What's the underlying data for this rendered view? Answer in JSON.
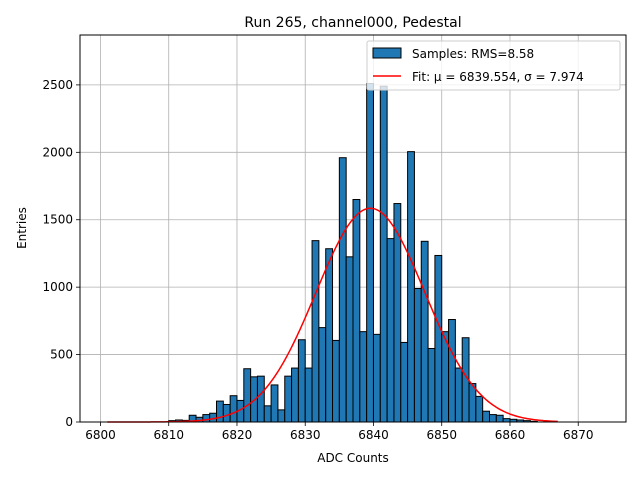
{
  "chart_data": {
    "type": "bar",
    "title": "Run 265, channel000, Pedestal",
    "xlabel": "ADC Counts",
    "ylabel": "Entries",
    "xlim": [
      6797,
      6877
    ],
    "ylim": [
      0,
      2870
    ],
    "xticks": [
      6800,
      6810,
      6820,
      6830,
      6840,
      6850,
      6860,
      6870
    ],
    "yticks": [
      0,
      500,
      1000,
      1500,
      2000,
      2500
    ],
    "grid": true,
    "legend_position": "top-right",
    "histogram": {
      "name": "Samples: RMS=8.58",
      "bin_width": 1,
      "bin_starts": [
        6810,
        6811,
        6812,
        6813,
        6814,
        6815,
        6816,
        6817,
        6818,
        6819,
        6820,
        6821,
        6822,
        6823,
        6824,
        6825,
        6826,
        6827,
        6828,
        6829,
        6830,
        6831,
        6832,
        6833,
        6834,
        6835,
        6836,
        6837,
        6838,
        6839,
        6840,
        6841,
        6842,
        6843,
        6844,
        6845,
        6846,
        6847,
        6848,
        6849,
        6850,
        6851,
        6852,
        6853,
        6854,
        6855,
        6856,
        6857,
        6858,
        6859,
        6860,
        6861,
        6862,
        6863
      ],
      "values": [
        10,
        15,
        12,
        50,
        35,
        55,
        65,
        155,
        130,
        195,
        160,
        395,
        335,
        340,
        120,
        275,
        90,
        340,
        400,
        610,
        400,
        1345,
        700,
        1285,
        605,
        1960,
        1225,
        1650,
        670,
        2510,
        650,
        2490,
        1360,
        1620,
        590,
        2005,
        990,
        1340,
        545,
        1235,
        670,
        760,
        400,
        625,
        285,
        190,
        80,
        55,
        50,
        25,
        20,
        15,
        10,
        5
      ],
      "color": "#1f77b4",
      "edge_color": "#000000"
    },
    "fit": {
      "name": "Fit: μ = 6839.554, σ = 7.974",
      "mu": 6839.554,
      "sigma": 7.974,
      "amplitude": 1585,
      "x_range": [
        6801,
        6867
      ],
      "color": "#ff0000"
    }
  }
}
